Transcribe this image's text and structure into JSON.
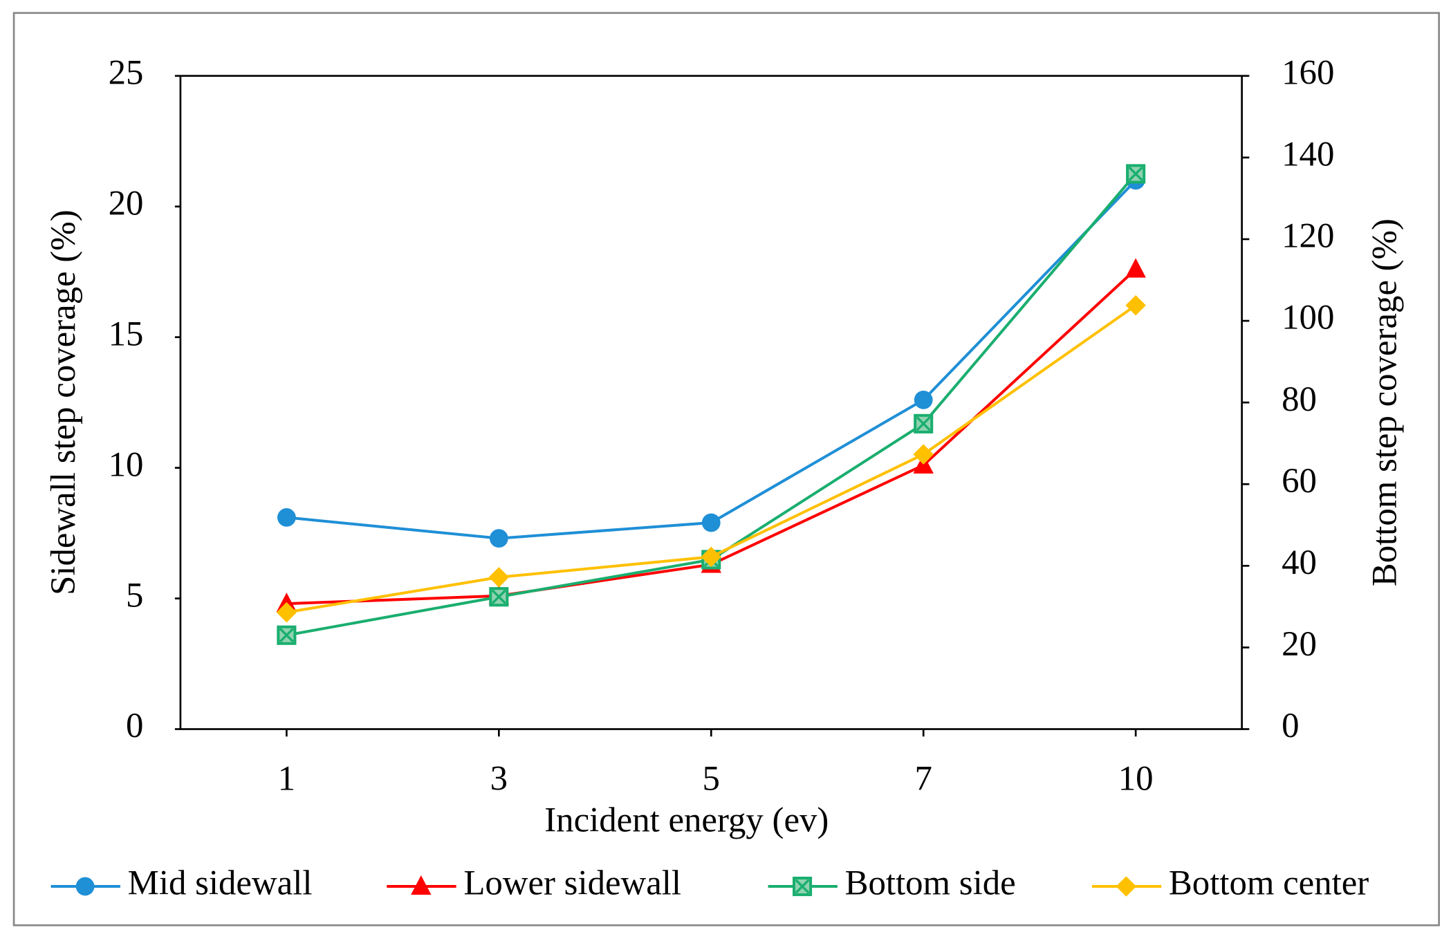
{
  "chart_data": {
    "type": "line",
    "x_label": "Incident energy (ev)",
    "y_label": "Sidewall step coverage (%)",
    "y2_label": "Bottom step coverage (%)",
    "categories": [
      "1",
      "3",
      "5",
      "7",
      "10"
    ],
    "ylim": [
      0,
      25
    ],
    "yticks": [
      0,
      5,
      10,
      15,
      20,
      25
    ],
    "y2lim": [
      0,
      160
    ],
    "y2ticks": [
      0,
      20,
      40,
      60,
      80,
      100,
      120,
      140,
      160
    ],
    "legend": "bottom",
    "series": [
      {
        "name": "Mid sidewall",
        "color": "#1f8fd6",
        "marker": "circle",
        "values": [
          8.1,
          7.3,
          7.9,
          12.6,
          21.0
        ]
      },
      {
        "name": "Lower sidewall",
        "color": "#ff0000",
        "marker": "triangle",
        "values": [
          4.8,
          5.1,
          6.3,
          10.1,
          17.6
        ]
      },
      {
        "name": "Bottom side",
        "color": "#1aae6f",
        "marker": "square",
        "axis": "y2",
        "values": [
          23,
          32.4,
          41.5,
          74.8,
          136
        ]
      },
      {
        "name": "Bottom center",
        "color": "#ffc000",
        "marker": "diamond",
        "axis": "y2",
        "values": [
          28.6,
          37.2,
          42.2,
          67.3,
          103.8
        ]
      }
    ]
  }
}
